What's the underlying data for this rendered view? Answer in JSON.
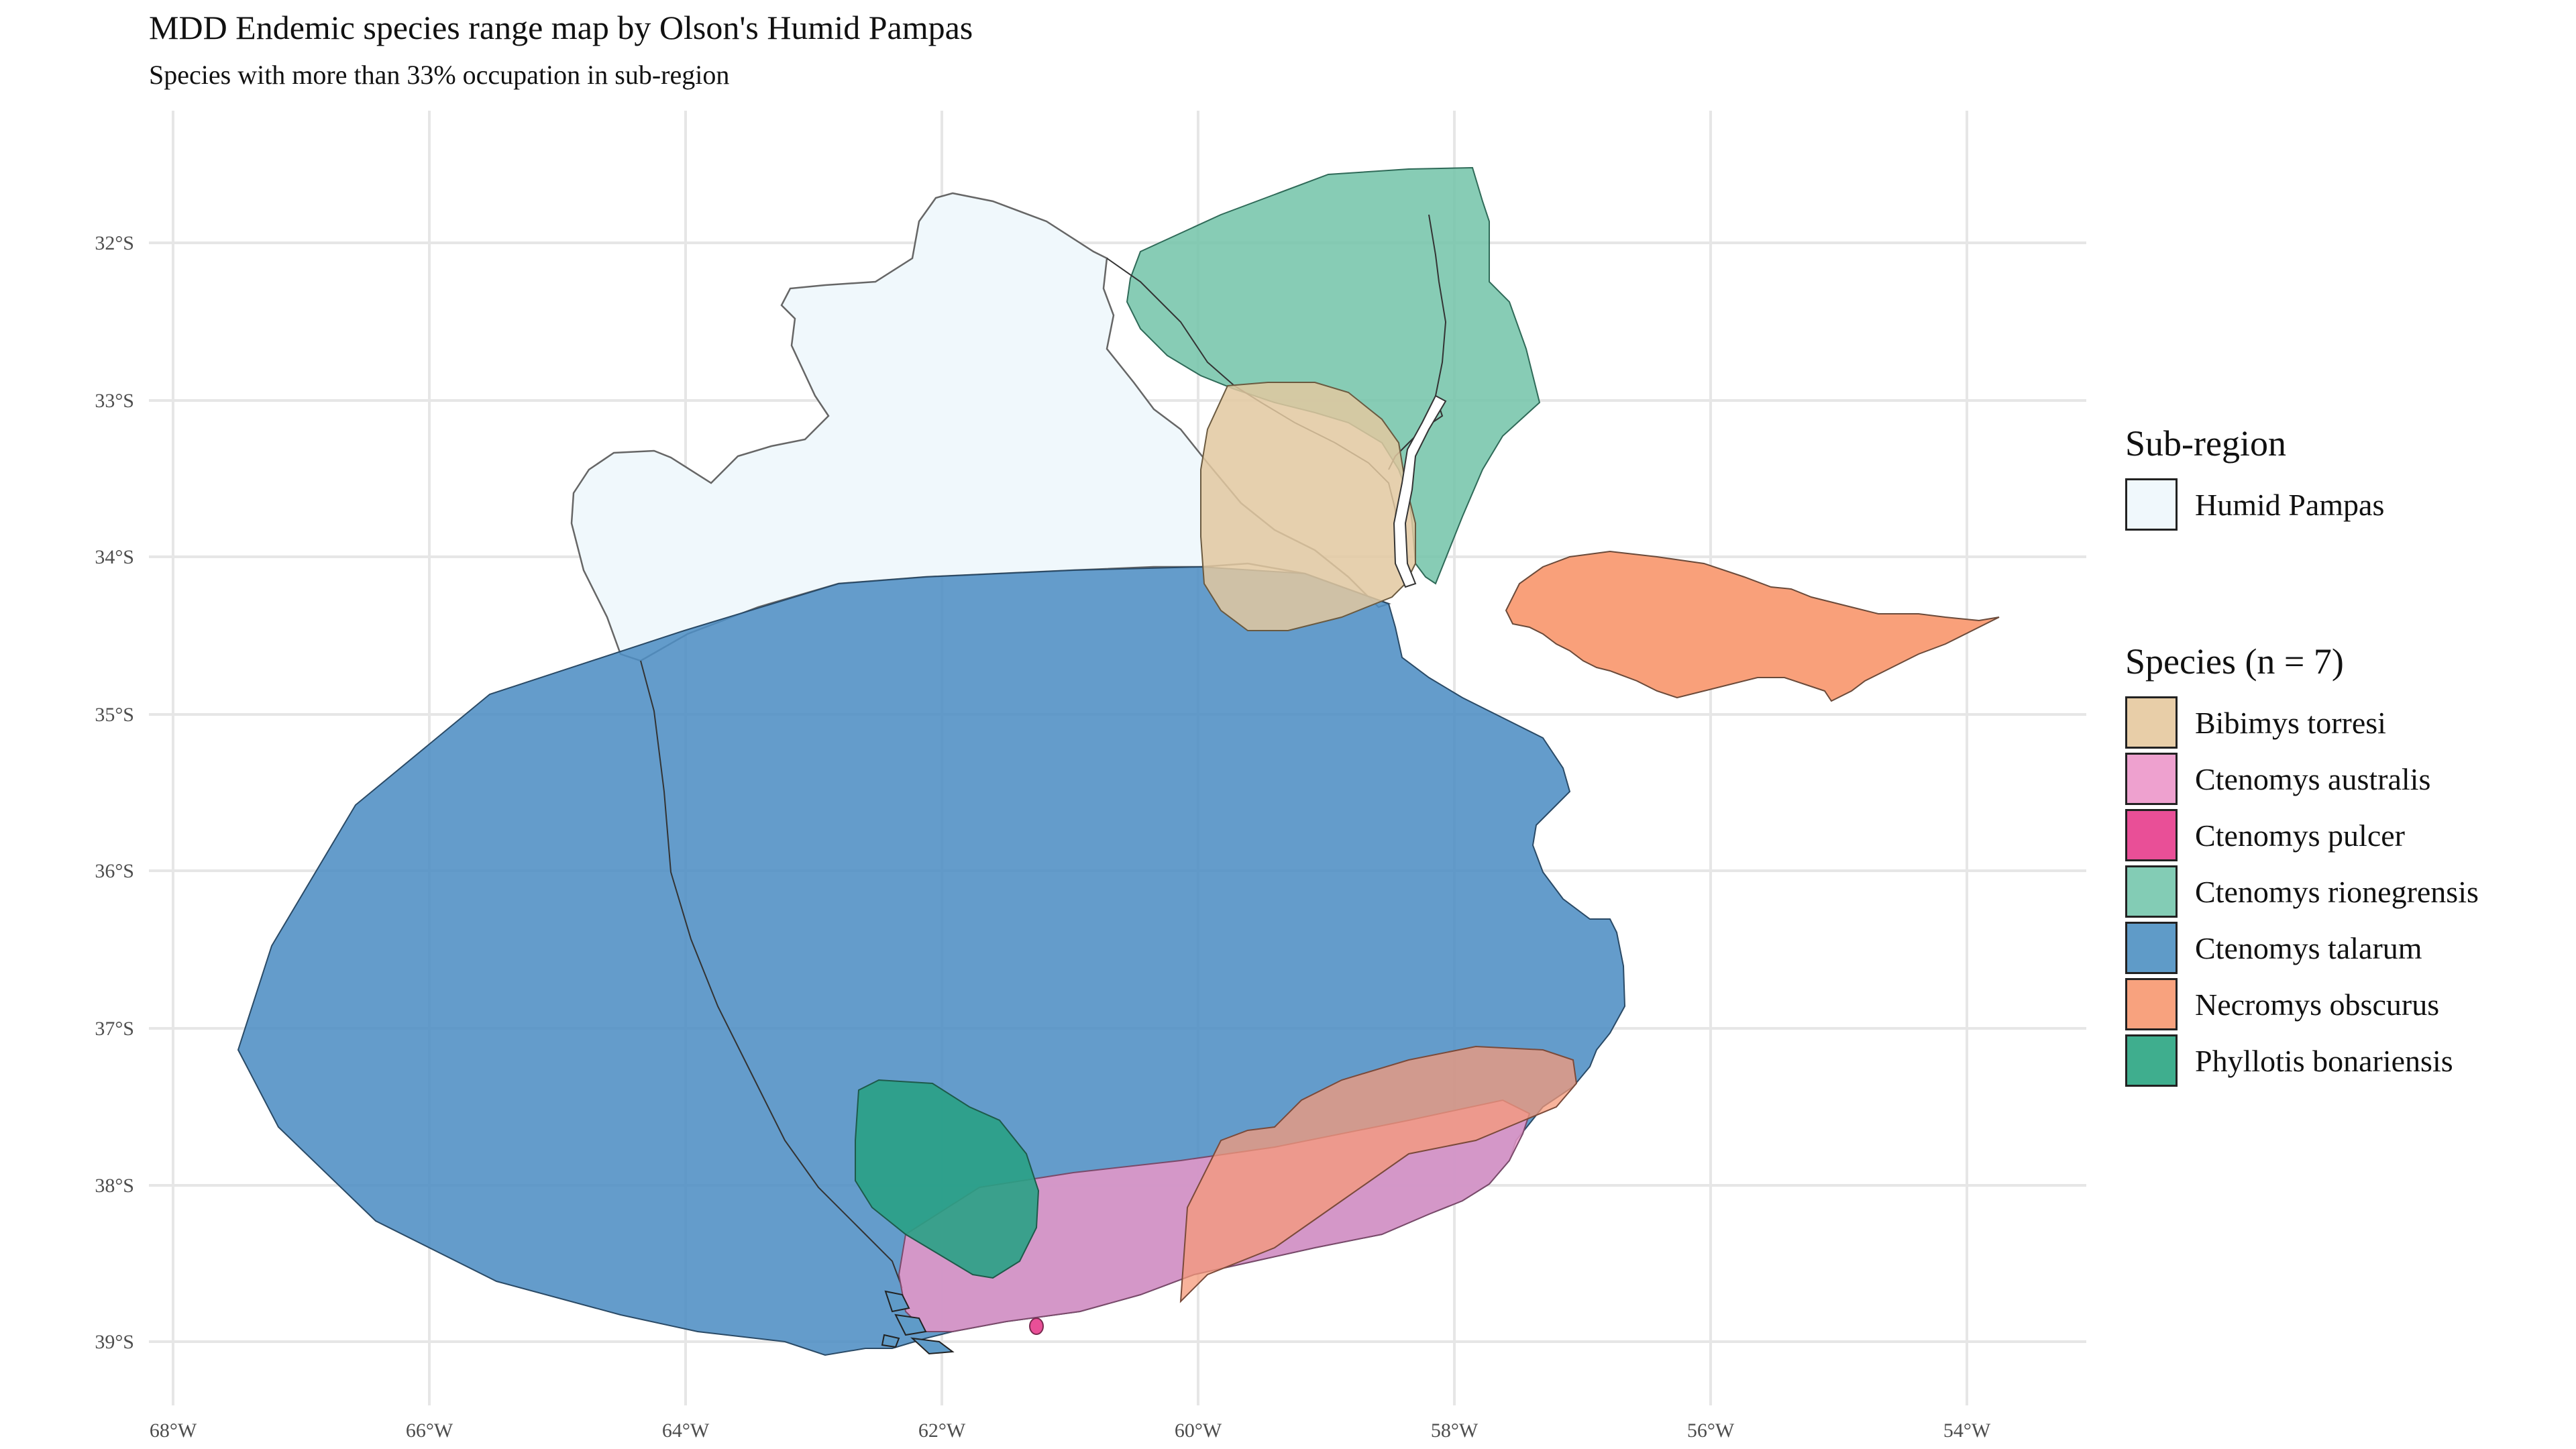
{
  "title": "MDD Endemic species range map by Olson's Humid Pampas",
  "subtitle": "Species with more than 33% occupation in sub-region",
  "axes": {
    "lon_ticks": [
      "68°W",
      "66°W",
      "64°W",
      "62°W",
      "60°W",
      "58°W",
      "56°W",
      "54°W"
    ],
    "lat_ticks": [
      "32°S",
      "33°S",
      "34°S",
      "35°S",
      "36°S",
      "37°S",
      "38°S",
      "39°S"
    ],
    "grid": "on"
  },
  "legend_subregion": {
    "title": "Sub-region",
    "items": [
      {
        "label": "Humid Pampas",
        "color": "#f0f8fc"
      }
    ]
  },
  "legend_species": {
    "title": "Species (n = 7)",
    "items": [
      {
        "label": "Bibimys torresi",
        "color": "#e8ceA8"
      },
      {
        "label": "Ctenomys australis",
        "color": "#eea1cf"
      },
      {
        "label": "Ctenomys pulcer",
        "color": "#e94f97"
      },
      {
        "label": "Ctenomys rionegrensis",
        "color": "#83ccb5"
      },
      {
        "label": "Ctenomys talarum",
        "color": "#5f9bc8"
      },
      {
        "label": "Necromys obscurus",
        "color": "#f8a27e"
      },
      {
        "label": "Phyllotis bonariensis",
        "color": "#3fae8e"
      }
    ]
  }
}
